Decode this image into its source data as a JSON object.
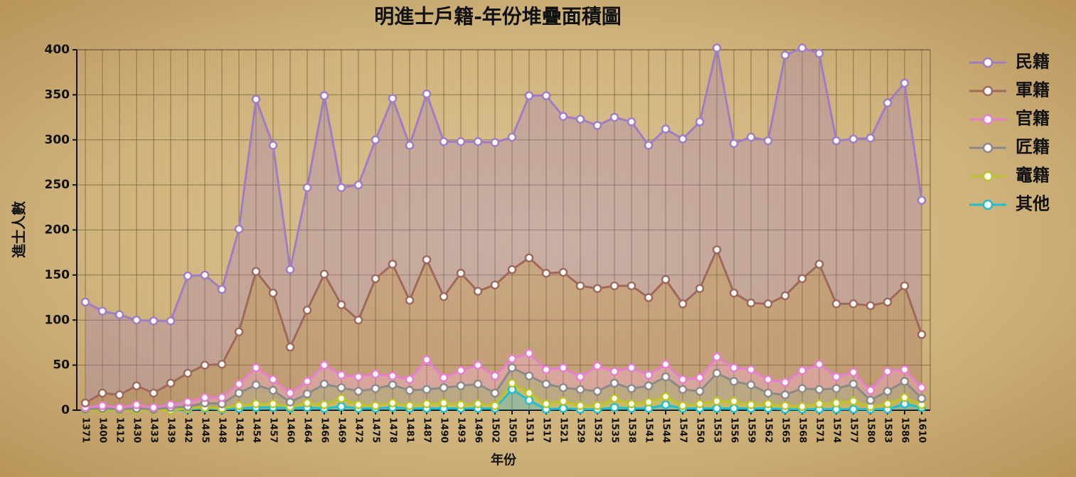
{
  "chart_data": {
    "type": "stacked_area",
    "title": "明進士戶籍-年份堆疊面積圖",
    "x_label": "年份",
    "y_label": "進士人數",
    "categories": [
      "1371",
      "1400",
      "1412",
      "1430",
      "1433",
      "1439",
      "1442",
      "1445",
      "1448",
      "1451",
      "1454",
      "1457",
      "1460",
      "1464",
      "1466",
      "1469",
      "1472",
      "1475",
      "1478",
      "1481",
      "1487",
      "1490",
      "1493",
      "1496",
      "1502",
      "1505",
      "1511",
      "1517",
      "1521",
      "1529",
      "1532",
      "1535",
      "1538",
      "1541",
      "1544",
      "1547",
      "1550",
      "1553",
      "1556",
      "1559",
      "1562",
      "1565",
      "1568",
      "1571",
      "1574",
      "1577",
      "1580",
      "1583",
      "1586",
      "1610"
    ],
    "series": [
      {
        "name": "民籍",
        "color": "#a07cc5",
        "values": [
          112,
          91,
          89,
          73,
          80,
          69,
          108,
          100,
          83,
          114,
          191,
          164,
          86,
          136,
          198,
          130,
          150,
          154,
          184,
          172,
          184,
          172,
          146,
          166,
          158,
          147,
          180,
          197,
          173,
          185,
          181,
          187,
          182,
          169,
          167,
          183,
          185,
          224,
          166,
          184,
          181,
          267,
          256,
          234,
          181,
          183,
          186,
          221,
          225,
          149
        ]
      },
      {
        "name": "軍籍",
        "color": "#a0685a",
        "values": [
          5,
          14,
          14,
          21,
          16,
          24,
          32,
          36,
          37,
          58,
          107,
          96,
          51,
          79,
          101,
          78,
          63,
          106,
          124,
          88,
          111,
          90,
          108,
          82,
          101,
          99,
          106,
          107,
          106,
          101,
          86,
          95,
          91,
          86,
          94,
          84,
          99,
          119,
          83,
          74,
          84,
          96,
          102,
          111,
          81,
          76,
          94,
          77,
          93,
          59
        ]
      },
      {
        "name": "官籍",
        "color": "#e67fd0",
        "values": [
          2,
          3,
          2,
          4,
          2,
          3,
          5,
          6,
          7,
          10,
          19,
          12,
          10,
          14,
          21,
          14,
          16,
          16,
          10,
          12,
          33,
          11,
          17,
          21,
          19,
          10,
          25,
          16,
          22,
          14,
          28,
          13,
          23,
          12,
          14,
          11,
          15,
          18,
          15,
          17,
          15,
          14,
          20,
          28,
          13,
          13,
          11,
          22,
          13,
          12
        ]
      },
      {
        "name": "匠籍",
        "color": "#8a8a8a",
        "values": [
          1,
          2,
          1,
          2,
          1,
          3,
          2,
          5,
          5,
          14,
          21,
          15,
          5,
          10,
          23,
          12,
          15,
          19,
          20,
          17,
          16,
          17,
          21,
          22,
          14,
          17,
          19,
          22,
          15,
          18,
          16,
          17,
          17,
          18,
          22,
          18,
          14,
          31,
          22,
          22,
          12,
          12,
          20,
          16,
          16,
          19,
          7,
          14,
          18,
          7
        ]
      },
      {
        "name": "竈籍",
        "color": "#bcc42a",
        "values": [
          0,
          0,
          0,
          0,
          0,
          0,
          1,
          1,
          1,
          3,
          4,
          4,
          2,
          5,
          4,
          9,
          4,
          3,
          5,
          3,
          5,
          6,
          4,
          5,
          3,
          7,
          8,
          6,
          8,
          4,
          4,
          10,
          5,
          7,
          9,
          3,
          5,
          8,
          8,
          4,
          5,
          4,
          3,
          6,
          7,
          9,
          3,
          6,
          7,
          3
        ]
      },
      {
        "name": "其他",
        "color": "#1fbfd0",
        "values": [
          0,
          0,
          0,
          0,
          0,
          0,
          1,
          2,
          1,
          2,
          3,
          3,
          2,
          3,
          2,
          4,
          2,
          2,
          3,
          2,
          2,
          2,
          2,
          2,
          2,
          23,
          11,
          1,
          2,
          1,
          1,
          3,
          2,
          2,
          6,
          2,
          2,
          2,
          2,
          2,
          2,
          1,
          1,
          1,
          1,
          1,
          1,
          1,
          7,
          3
        ]
      }
    ],
    "ylim": [
      0,
      400
    ],
    "yticks": [
      0,
      50,
      100,
      150,
      200,
      250,
      300,
      350,
      400
    ],
    "grid": true,
    "legend": "right"
  }
}
